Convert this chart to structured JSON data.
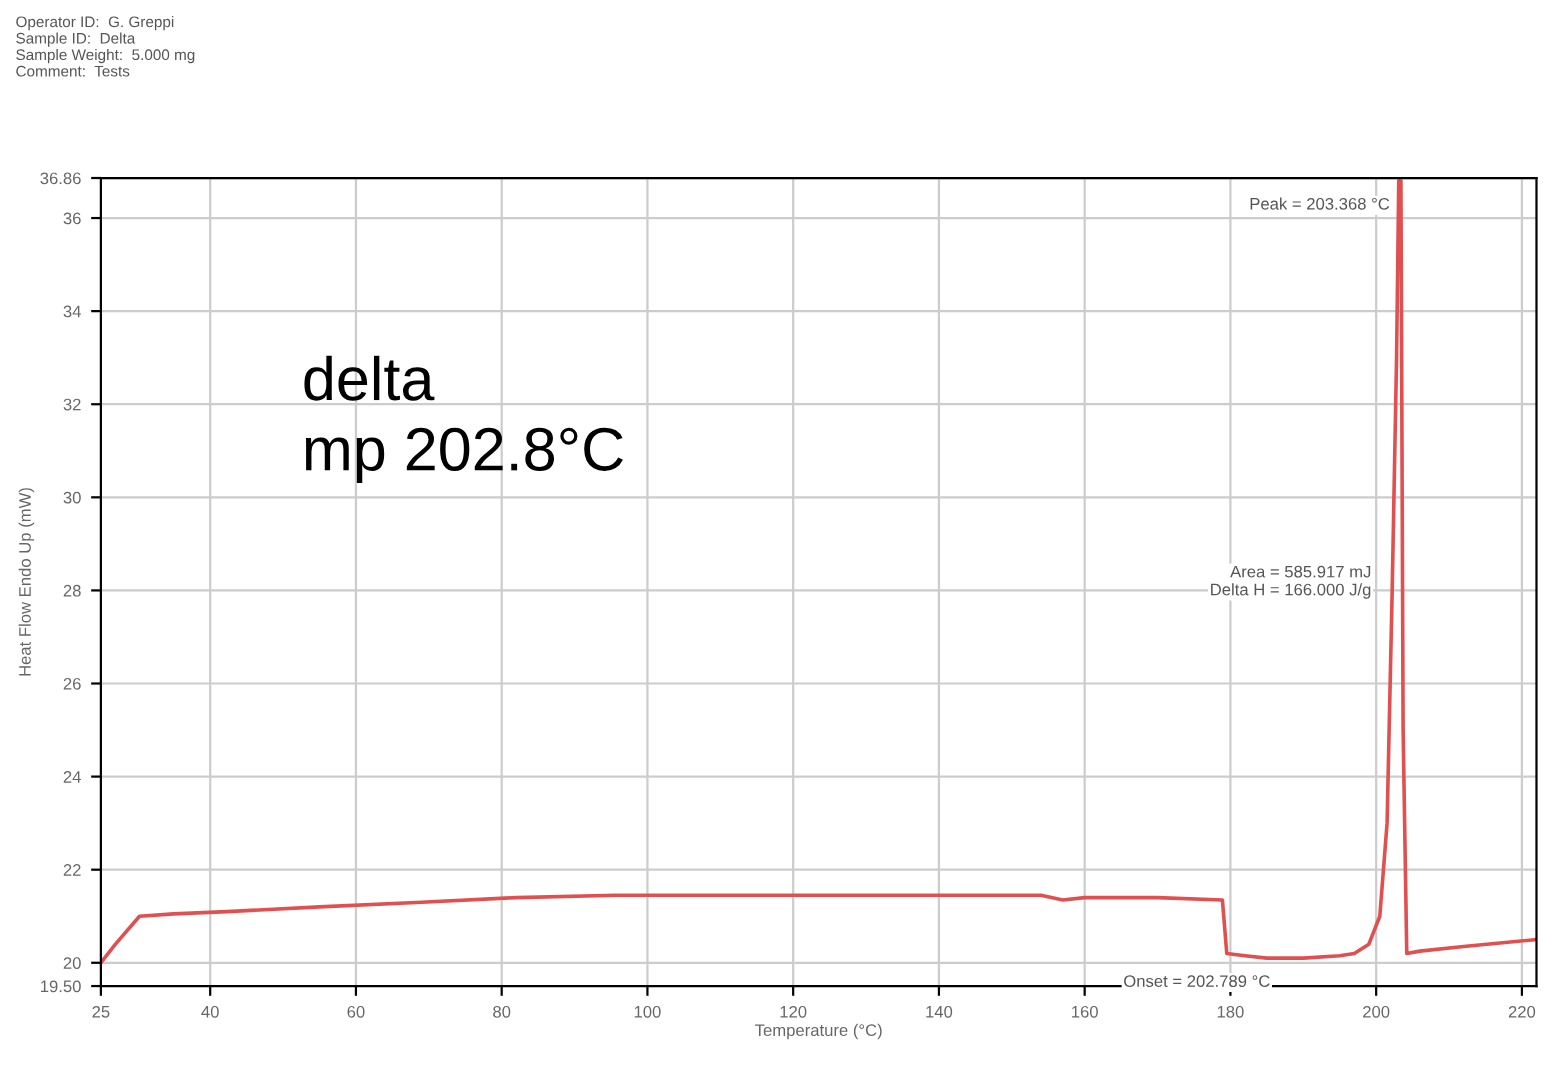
{
  "chart_data": {
    "type": "line",
    "title": "delta\nmp 202.8°C",
    "subtitle": "Operator ID:  G. Greppi\nSample ID:  Delta\nSample Weight:  5.000 mg\nComment:  Tests",
    "xlabel": "Temperature (°C)",
    "ylabel": "Heat Flow Endo Up (mW)",
    "x": [
      25,
      27,
      30.3,
      35,
      42.3,
      55,
      69,
      82,
      95.7,
      110,
      130,
      154,
      157,
      160,
      170,
      178.9,
      179.5,
      182,
      185,
      190,
      195,
      197,
      199,
      200.5,
      201.5,
      202.2,
      202.8,
      203.1,
      203.4,
      203.7,
      204.2,
      206,
      212,
      222
    ],
    "series": [
      {
        "color": "#e05050",
        "values": [
          20.0,
          20.4,
          21.0,
          21.05,
          21.1,
          21.2,
          21.3,
          21.4,
          21.45,
          21.45,
          21.45,
          21.45,
          21.35,
          21.4,
          21.4,
          21.35,
          20.2,
          20.15,
          20.1,
          20.1,
          20.15,
          20.2,
          20.4,
          21.0,
          23.0,
          28.0,
          33.0,
          36.8,
          36.8,
          25.0,
          20.2,
          20.25,
          20.35,
          20.5
        ]
      }
    ],
    "xlim": [
      25,
      222
    ],
    "ylim": [
      19.5,
      36.86
    ],
    "xticks": [
      25,
      40,
      60,
      80,
      100,
      120,
      140,
      160,
      180,
      200,
      220
    ],
    "yticks": [
      {
        "value": 19.5,
        "label": "19.50"
      },
      20,
      22,
      24,
      26,
      28,
      30,
      32,
      34,
      36,
      {
        "value": 36.86,
        "label": "36.86"
      }
    ],
    "grid": true,
    "annotations": [
      {
        "text": "Peak = 203.368 °C",
        "x": 203.4,
        "y": 36.8
      },
      {
        "text": "Onset = 202.789 °C",
        "x": 187,
        "y": 20.1
      },
      "Area = 585.917 mJ\nDelta H = 166.000 J/g"
    ]
  }
}
